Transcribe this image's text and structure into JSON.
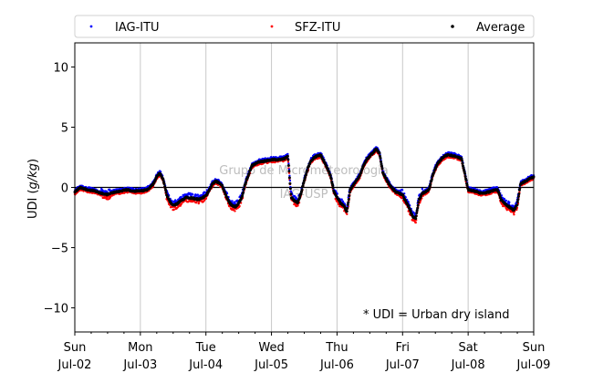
{
  "chart_data": {
    "type": "scatter",
    "title": "",
    "xlabel": "",
    "ylabel_prefix": "UDI (",
    "ylabel_unit": "g/kg",
    "ylabel_suffix": ")",
    "ylim": [
      -12,
      12
    ],
    "yticks": [
      -10,
      -5,
      0,
      5,
      10
    ],
    "xlim_days": [
      0,
      7
    ],
    "xtick_labels": [
      [
        "Sun",
        "Jul-02"
      ],
      [
        "Mon",
        "Jul-03"
      ],
      [
        "Tue",
        "Jul-04"
      ],
      [
        "Wed",
        "Jul-05"
      ],
      [
        "Thu",
        "Jul-06"
      ],
      [
        "Fri",
        "Jul-07"
      ],
      [
        "Sat",
        "Jul-08"
      ],
      [
        "Sun",
        "Jul-09"
      ]
    ],
    "grid_x": true,
    "zero_line": true,
    "legend_position": "top",
    "annotation": "* UDI = Urban dry island",
    "watermark": [
      "Grupo de Micrometeorologia",
      "IAG-USP"
    ],
    "series": [
      {
        "name": "IAG-ITU",
        "color": "#0000ff"
      },
      {
        "name": "SFZ-ITU",
        "color": "#ff0000"
      },
      {
        "name": "Average",
        "color": "#000000"
      }
    ],
    "average_profile": {
      "x": [
        0.0,
        0.08,
        0.2,
        0.3,
        0.4,
        0.5,
        0.6,
        0.7,
        0.8,
        0.9,
        1.0,
        1.1,
        1.2,
        1.25,
        1.3,
        1.35,
        1.4,
        1.45,
        1.5,
        1.55,
        1.6,
        1.7,
        1.8,
        1.9,
        2.0,
        2.05,
        2.1,
        2.15,
        2.2,
        2.25,
        2.3,
        2.35,
        2.4,
        2.45,
        2.5,
        2.55,
        2.6,
        2.7,
        2.8,
        2.9,
        3.0,
        3.1,
        3.2,
        3.25,
        3.3,
        3.35,
        3.4,
        3.45,
        3.5,
        3.55,
        3.6,
        3.65,
        3.7,
        3.75,
        3.8,
        3.9,
        3.95,
        4.0,
        4.05,
        4.1,
        4.15,
        4.2,
        4.25,
        4.3,
        4.35,
        4.4,
        4.45,
        4.5,
        4.55,
        4.6,
        4.65,
        4.7,
        4.8,
        4.9,
        5.0,
        5.05,
        5.1,
        5.15,
        5.2,
        5.25,
        5.3,
        5.35,
        5.4,
        5.45,
        5.5,
        5.55,
        5.6,
        5.65,
        5.7,
        5.8,
        5.9,
        6.0,
        6.1,
        6.2,
        6.3,
        6.35,
        6.4,
        6.45,
        6.5,
        6.55,
        6.6,
        6.65,
        6.7,
        6.75,
        6.8,
        6.9,
        7.0
      ],
      "y": [
        -0.4,
        0.0,
        -0.2,
        -0.3,
        -0.5,
        -0.6,
        -0.4,
        -0.3,
        -0.2,
        -0.3,
        -0.3,
        -0.2,
        0.3,
        0.9,
        1.2,
        0.6,
        -0.6,
        -1.2,
        -1.5,
        -1.4,
        -1.2,
        -0.8,
        -0.9,
        -1.0,
        -0.7,
        -0.2,
        0.3,
        0.5,
        0.4,
        0.1,
        -0.6,
        -1.2,
        -1.5,
        -1.6,
        -1.3,
        -0.8,
        0.3,
        1.8,
        2.1,
        2.2,
        2.3,
        2.3,
        2.4,
        2.6,
        -0.8,
        -1.1,
        -1.3,
        -0.5,
        0.6,
        1.5,
        2.2,
        2.5,
        2.6,
        2.7,
        2.2,
        1.0,
        -0.3,
        -0.8,
        -1.3,
        -1.5,
        -2.0,
        -0.2,
        0.2,
        0.6,
        1.0,
        1.8,
        2.3,
        2.6,
        2.9,
        3.2,
        2.8,
        1.2,
        0.2,
        -0.4,
        -0.6,
        -1.2,
        -1.7,
        -2.4,
        -2.6,
        -1.0,
        -0.5,
        -0.4,
        -0.2,
        0.8,
        1.6,
        2.1,
        2.4,
        2.6,
        2.7,
        2.6,
        2.4,
        -0.2,
        -0.3,
        -0.5,
        -0.4,
        -0.3,
        -0.2,
        -0.2,
        -1.0,
        -1.3,
        -1.5,
        -1.7,
        -1.9,
        -1.4,
        0.3,
        0.6,
        0.9
      ]
    }
  }
}
